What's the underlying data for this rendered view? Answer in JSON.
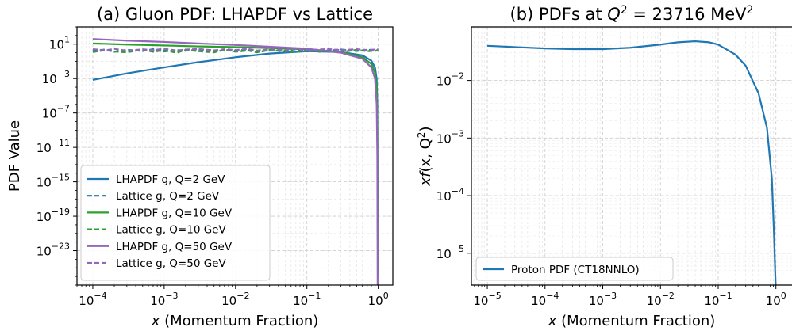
{
  "chart_data": [
    {
      "type": "line",
      "title": "(a) Gluon PDF: LHAPDF vs Lattice",
      "xlabel_var": "x",
      "xlabel_rest": " (Momentum Fraction)",
      "ylabel": "PDF Value",
      "xscale": "log",
      "yscale": "log",
      "xlim": [
        6e-05,
        1.6
      ],
      "ylim": [
        1e-27,
        1000
      ],
      "xticks": [
        {
          "v": 0.0001,
          "base": "10",
          "exp": "−4"
        },
        {
          "v": 0.001,
          "base": "10",
          "exp": "−3"
        },
        {
          "v": 0.01,
          "base": "10",
          "exp": "−2"
        },
        {
          "v": 0.1,
          "base": "10",
          "exp": "−1"
        },
        {
          "v": 1,
          "base": "10",
          "exp": "0"
        }
      ],
      "yticks": [
        {
          "v": 10,
          "base": "10",
          "exp": "1"
        },
        {
          "v": 0.001,
          "base": "10",
          "exp": "−3"
        },
        {
          "v": 1e-07,
          "base": "10",
          "exp": "−7"
        },
        {
          "v": 1e-11,
          "base": "10",
          "exp": "−11"
        },
        {
          "v": 1e-15,
          "base": "10",
          "exp": "−15"
        },
        {
          "v": 1e-19,
          "base": "10",
          "exp": "−19"
        },
        {
          "v": 1e-23,
          "base": "10",
          "exp": "−23"
        }
      ],
      "grid": true,
      "legend_position": "lower-left",
      "series": [
        {
          "name": "LHAPDF g, Q=2 GeV",
          "color": "#1f77b4",
          "dash": "solid",
          "x": [
            0.0001,
            0.0003,
            0.001,
            0.003,
            0.01,
            0.03,
            0.1,
            0.3,
            0.6,
            0.8,
            0.9,
            0.95,
            0.97,
            0.99
          ],
          "y": [
            0.0007,
            0.004,
            0.02,
            0.08,
            0.3,
            0.8,
            1.5,
            1.2,
            0.5,
            0.12,
            0.02,
            0.001,
            1e-06,
            1e-26
          ]
        },
        {
          "name": "Lattice g, Q=2 GeV",
          "color": "#1f77b4",
          "dash": "dashed",
          "x": [
            0.0001,
            0.00015,
            0.0002,
            0.0003,
            0.0005,
            0.0007,
            0.001,
            0.0015,
            0.002,
            0.003,
            0.005,
            0.007,
            0.01,
            0.015,
            0.02,
            0.03,
            0.05,
            0.07,
            0.1,
            0.15,
            0.2,
            0.3,
            0.5,
            0.7,
            1.0
          ],
          "y": [
            1.7,
            2.4,
            1.3,
            2.2,
            1.6,
            2.6,
            1.4,
            2.1,
            1.7,
            2.5,
            1.3,
            2.0,
            1.8,
            2.4,
            1.5,
            2.2,
            1.7,
            2.6,
            1.4,
            2.0,
            1.8,
            2.4,
            1.6,
            2.2,
            1.9
          ]
        },
        {
          "name": "LHAPDF g, Q=10 GeV",
          "color": "#2ca02c",
          "dash": "solid",
          "x": [
            0.0001,
            0.0003,
            0.001,
            0.003,
            0.01,
            0.03,
            0.1,
            0.3,
            0.6,
            0.8,
            0.9,
            0.95,
            0.97,
            0.99
          ],
          "y": [
            12,
            9,
            7,
            5.5,
            4.5,
            3.5,
            2.5,
            1.2,
            0.3,
            0.05,
            0.005,
            0.0001,
            1e-08,
            5e-26
          ]
        },
        {
          "name": "Lattice g, Q=10 GeV",
          "color": "#2ca02c",
          "dash": "dashed",
          "x": [
            0.0001,
            0.00015,
            0.0002,
            0.0003,
            0.0005,
            0.0007,
            0.001,
            0.0015,
            0.002,
            0.003,
            0.005,
            0.007,
            0.01,
            0.015,
            0.02,
            0.03,
            0.05,
            0.07,
            0.1,
            0.15,
            0.2,
            0.3,
            0.5,
            0.7,
            1.0
          ],
          "y": [
            1.2,
            2.0,
            1.4,
            1.1,
            2.3,
            1.3,
            1.9,
            1.0,
            2.2,
            1.5,
            1.1,
            2.4,
            1.3,
            1.8,
            1.1,
            2.1,
            1.4,
            1.2,
            2.3,
            1.3,
            1.7,
            1.2,
            2.2,
            1.5,
            1.8
          ]
        },
        {
          "name": "LHAPDF g, Q=50 GeV",
          "color": "#9467bd",
          "dash": "solid",
          "x": [
            0.0001,
            0.0003,
            0.001,
            0.003,
            0.01,
            0.03,
            0.1,
            0.3,
            0.6,
            0.8,
            0.9,
            0.95,
            0.97,
            0.98
          ],
          "y": [
            40,
            26,
            18,
            12,
            8,
            5,
            3,
            1.0,
            0.2,
            0.02,
            0.001,
            1e-06,
            1e-12,
            1e-27
          ]
        },
        {
          "name": "Lattice g, Q=50 GeV",
          "color": "#9467bd",
          "dash": "dashed",
          "x": [
            0.0001,
            0.00015,
            0.0002,
            0.0003,
            0.0005,
            0.0007,
            0.001,
            0.0015,
            0.002,
            0.003,
            0.005,
            0.007,
            0.01,
            0.015,
            0.02,
            0.03,
            0.05,
            0.07,
            0.1,
            0.15,
            0.2,
            0.3,
            0.5,
            0.7,
            1.0
          ],
          "y": [
            2.6,
            1.9,
            2.8,
            1.7,
            2.5,
            2.0,
            2.9,
            1.8,
            2.4,
            2.7,
            1.9,
            2.6,
            2.1,
            2.8,
            1.8,
            2.5,
            2.2,
            2.9,
            1.9,
            2.4,
            2.7,
            2.0,
            2.6,
            2.1,
            2.5
          ]
        }
      ]
    },
    {
      "type": "line",
      "title_pre": "(b) PDFs at ",
      "title_var": "Q",
      "title_exp": "2",
      "title_post": " = 23716 MeV",
      "title_post_exp": "2",
      "xlabel_var": "x",
      "xlabel_rest": " (Momentum Fraction)",
      "ylabel_pre": "xf",
      "ylabel_mid": "(x, Q",
      "ylabel_exp": "2",
      "ylabel_post": ")",
      "xscale": "log",
      "yscale": "log",
      "xlim": [
        5.3e-06,
        1.9
      ],
      "ylim": [
        2.8e-06,
        0.085
      ],
      "xticks": [
        {
          "v": 1e-05,
          "base": "10",
          "exp": "−5"
        },
        {
          "v": 0.0001,
          "base": "10",
          "exp": "−4"
        },
        {
          "v": 0.001,
          "base": "10",
          "exp": "−3"
        },
        {
          "v": 0.01,
          "base": "10",
          "exp": "−2"
        },
        {
          "v": 0.1,
          "base": "10",
          "exp": "−1"
        },
        {
          "v": 1,
          "base": "10",
          "exp": "0"
        }
      ],
      "yticks": [
        {
          "v": 0.01,
          "base": "10",
          "exp": "−2"
        },
        {
          "v": 0.001,
          "base": "10",
          "exp": "−3"
        },
        {
          "v": 0.0001,
          "base": "10",
          "exp": "−4"
        },
        {
          "v": 1e-05,
          "base": "10",
          "exp": "−5"
        }
      ],
      "grid": true,
      "legend_position": "lower-left",
      "series": [
        {
          "name": "Proton PDF (CT18NNLO)",
          "color": "#1f77b4",
          "dash": "solid",
          "x": [
            1e-05,
            3e-05,
            0.0001,
            0.0003,
            0.001,
            0.003,
            0.01,
            0.02,
            0.04,
            0.07,
            0.1,
            0.2,
            0.3,
            0.5,
            0.7,
            0.85,
            0.93,
            0.97,
            0.99
          ],
          "y": [
            0.04,
            0.038,
            0.036,
            0.035,
            0.035,
            0.037,
            0.042,
            0.046,
            0.048,
            0.046,
            0.042,
            0.028,
            0.018,
            0.006,
            0.0015,
            0.0002,
            2e-05,
            5e-06,
            2.8e-06
          ]
        }
      ]
    }
  ]
}
